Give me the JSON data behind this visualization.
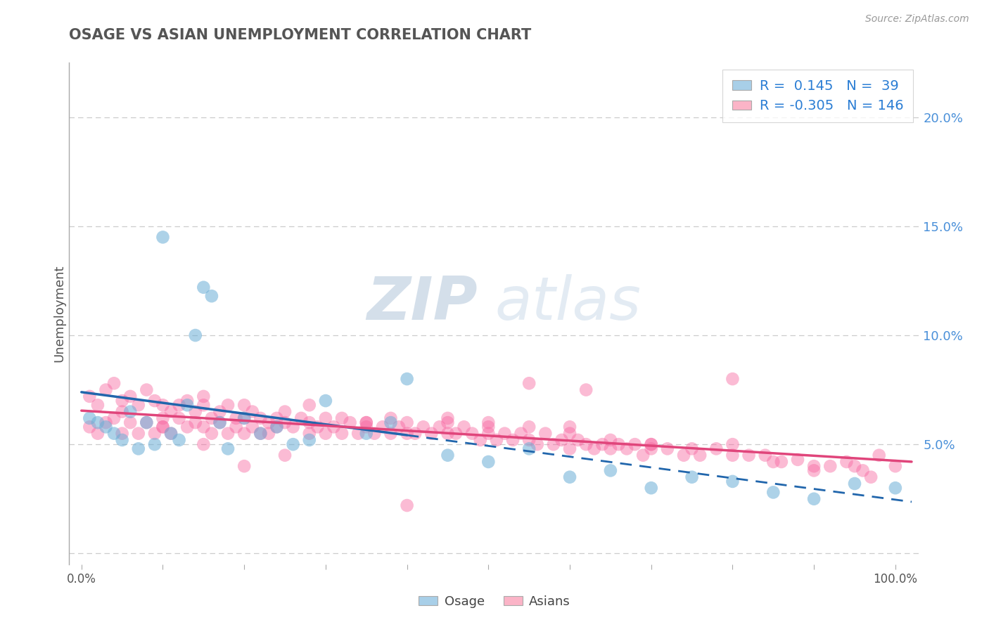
{
  "title": "OSAGE VS ASIAN UNEMPLOYMENT CORRELATION CHART",
  "source": "Source: ZipAtlas.com",
  "ylabel": "Unemployment",
  "y_ticks": [
    0.0,
    0.05,
    0.1,
    0.15,
    0.2
  ],
  "y_tick_labels": [
    "",
    "5.0%",
    "10.0%",
    "15.0%",
    "20.0%"
  ],
  "x_ticks": [
    0.0,
    0.1,
    0.2,
    0.3,
    0.4,
    0.5,
    0.6,
    0.7,
    0.8,
    0.9,
    1.0
  ],
  "osage_R": 0.145,
  "osage_N": 39,
  "asian_R": -0.305,
  "asian_N": 146,
  "blue_color": "#6baed6",
  "pink_color": "#f768a1",
  "blue_line_color": "#2166ac",
  "pink_line_color": "#e0457b",
  "blue_legend_color": "#a8cfe8",
  "pink_legend_color": "#fbb4c7",
  "watermark_zip": "ZIP",
  "watermark_atlas": "atlas",
  "background_color": "#ffffff",
  "grid_color": "#cccccc",
  "title_color": "#555555",
  "osage_x": [
    0.01,
    0.02,
    0.03,
    0.04,
    0.05,
    0.06,
    0.07,
    0.08,
    0.09,
    0.1,
    0.11,
    0.12,
    0.13,
    0.14,
    0.15,
    0.16,
    0.17,
    0.18,
    0.2,
    0.22,
    0.24,
    0.26,
    0.28,
    0.3,
    0.35,
    0.38,
    0.4,
    0.45,
    0.5,
    0.55,
    0.6,
    0.65,
    0.7,
    0.75,
    0.8,
    0.85,
    0.9,
    0.95,
    1.0
  ],
  "osage_y": [
    0.062,
    0.06,
    0.058,
    0.055,
    0.052,
    0.065,
    0.048,
    0.06,
    0.05,
    0.145,
    0.055,
    0.052,
    0.068,
    0.1,
    0.122,
    0.118,
    0.06,
    0.048,
    0.062,
    0.055,
    0.058,
    0.05,
    0.052,
    0.07,
    0.055,
    0.06,
    0.08,
    0.045,
    0.042,
    0.048,
    0.035,
    0.038,
    0.03,
    0.035,
    0.033,
    0.028,
    0.025,
    0.032,
    0.03
  ],
  "asian_x": [
    0.01,
    0.01,
    0.02,
    0.02,
    0.03,
    0.03,
    0.04,
    0.04,
    0.05,
    0.05,
    0.05,
    0.06,
    0.06,
    0.07,
    0.07,
    0.08,
    0.08,
    0.09,
    0.09,
    0.1,
    0.1,
    0.1,
    0.11,
    0.11,
    0.12,
    0.12,
    0.13,
    0.13,
    0.14,
    0.14,
    0.15,
    0.15,
    0.15,
    0.16,
    0.16,
    0.17,
    0.17,
    0.18,
    0.18,
    0.19,
    0.19,
    0.2,
    0.2,
    0.2,
    0.21,
    0.21,
    0.22,
    0.22,
    0.23,
    0.23,
    0.24,
    0.24,
    0.25,
    0.25,
    0.26,
    0.27,
    0.28,
    0.28,
    0.29,
    0.3,
    0.3,
    0.31,
    0.32,
    0.32,
    0.33,
    0.34,
    0.35,
    0.35,
    0.36,
    0.37,
    0.38,
    0.38,
    0.39,
    0.4,
    0.4,
    0.41,
    0.42,
    0.43,
    0.44,
    0.45,
    0.45,
    0.46,
    0.47,
    0.48,
    0.49,
    0.5,
    0.5,
    0.51,
    0.52,
    0.53,
    0.54,
    0.55,
    0.55,
    0.56,
    0.57,
    0.58,
    0.59,
    0.6,
    0.6,
    0.61,
    0.62,
    0.63,
    0.64,
    0.65,
    0.65,
    0.66,
    0.67,
    0.68,
    0.69,
    0.7,
    0.7,
    0.72,
    0.74,
    0.75,
    0.76,
    0.78,
    0.8,
    0.8,
    0.82,
    0.84,
    0.85,
    0.86,
    0.88,
    0.9,
    0.9,
    0.92,
    0.94,
    0.95,
    0.96,
    0.97,
    0.98,
    1.0,
    0.62,
    0.55,
    0.45,
    0.8,
    0.35,
    0.28,
    0.5,
    0.7,
    0.4,
    0.6,
    0.2,
    0.25,
    0.15,
    0.1
  ],
  "asian_y": [
    0.072,
    0.058,
    0.068,
    0.055,
    0.075,
    0.06,
    0.078,
    0.062,
    0.07,
    0.065,
    0.055,
    0.072,
    0.06,
    0.068,
    0.055,
    0.075,
    0.06,
    0.07,
    0.055,
    0.068,
    0.062,
    0.058,
    0.065,
    0.055,
    0.068,
    0.062,
    0.07,
    0.058,
    0.065,
    0.06,
    0.068,
    0.072,
    0.058,
    0.062,
    0.055,
    0.065,
    0.06,
    0.068,
    0.055,
    0.062,
    0.058,
    0.068,
    0.062,
    0.055,
    0.065,
    0.058,
    0.062,
    0.055,
    0.06,
    0.055,
    0.062,
    0.058,
    0.065,
    0.06,
    0.058,
    0.062,
    0.055,
    0.06,
    0.058,
    0.062,
    0.055,
    0.058,
    0.062,
    0.055,
    0.06,
    0.055,
    0.06,
    0.058,
    0.055,
    0.058,
    0.062,
    0.055,
    0.058,
    0.055,
    0.06,
    0.055,
    0.058,
    0.055,
    0.058,
    0.055,
    0.06,
    0.055,
    0.058,
    0.055,
    0.052,
    0.058,
    0.055,
    0.052,
    0.055,
    0.052,
    0.055,
    0.052,
    0.058,
    0.05,
    0.055,
    0.05,
    0.052,
    0.055,
    0.048,
    0.052,
    0.05,
    0.048,
    0.05,
    0.052,
    0.048,
    0.05,
    0.048,
    0.05,
    0.045,
    0.048,
    0.05,
    0.048,
    0.045,
    0.048,
    0.045,
    0.048,
    0.05,
    0.045,
    0.045,
    0.045,
    0.042,
    0.042,
    0.043,
    0.04,
    0.038,
    0.04,
    0.042,
    0.04,
    0.038,
    0.035,
    0.045,
    0.04,
    0.075,
    0.078,
    0.062,
    0.08,
    0.06,
    0.068,
    0.06,
    0.05,
    0.022,
    0.058,
    0.04,
    0.045,
    0.05,
    0.058
  ]
}
